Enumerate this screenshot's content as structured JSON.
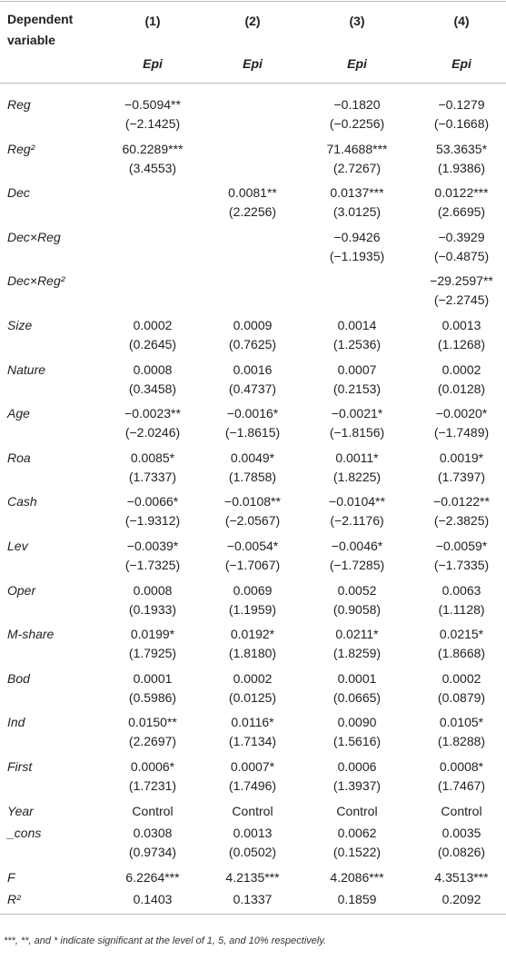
{
  "table": {
    "header": {
      "label": "Dependent variable",
      "columns": [
        "(1)",
        "(2)",
        "(3)",
        "(4)"
      ],
      "subheader": [
        "Epi",
        "Epi",
        "Epi",
        "Epi"
      ]
    },
    "rows": [
      {
        "label": "Reg",
        "coef": [
          "−0.5094**",
          null,
          "−0.1820",
          "−0.1279"
        ],
        "t": [
          "(−2.1425)",
          null,
          "(−0.2256)",
          "(−0.1668)"
        ]
      },
      {
        "label": "Reg²",
        "coef": [
          "60.2289***",
          null,
          "71.4688***",
          "53.3635*"
        ],
        "t": [
          "(3.4553)",
          null,
          "(2.7267)",
          "(1.9386)"
        ]
      },
      {
        "label": "Dec",
        "coef": [
          null,
          "0.0081**",
          "0.0137***",
          "0.0122***"
        ],
        "t": [
          null,
          "(2.2256)",
          "(3.0125)",
          "(2.6695)"
        ]
      },
      {
        "label": "Dec×Reg",
        "coef": [
          null,
          null,
          "−0.9426",
          "−0.3929"
        ],
        "t": [
          null,
          null,
          "(−1.1935)",
          "(−0.4875)"
        ]
      },
      {
        "label": "Dec×Reg²",
        "coef": [
          null,
          null,
          null,
          "−29.2597**"
        ],
        "t": [
          null,
          null,
          null,
          "(−2.2745)"
        ]
      },
      {
        "label": "Size",
        "coef": [
          "0.0002",
          "0.0009",
          "0.0014",
          "0.0013"
        ],
        "t": [
          "(0.2645)",
          "(0.7625)",
          "(1.2536)",
          "(1.1268)"
        ]
      },
      {
        "label": "Nature",
        "coef": [
          "0.0008",
          "0.0016",
          "0.0007",
          "0.0002"
        ],
        "t": [
          "(0.3458)",
          "(0.4737)",
          "(0.2153)",
          "(0.0128)"
        ]
      },
      {
        "label": "Age",
        "coef": [
          "−0.0023**",
          "−0.0016*",
          "−0.0021*",
          "−0.0020*"
        ],
        "t": [
          "(−2.0246)",
          "(−1.8615)",
          "(−1.8156)",
          "(−1.7489)"
        ]
      },
      {
        "label": "Roa",
        "coef": [
          "0.0085*",
          "0.0049*",
          "0.0011*",
          "0.0019*"
        ],
        "t": [
          "(1.7337)",
          "(1.7858)",
          "(1.8225)",
          "(1.7397)"
        ]
      },
      {
        "label": "Cash",
        "coef": [
          "−0.0066*",
          "−0.0108**",
          "−0.0104**",
          "−0.0122**"
        ],
        "t": [
          "(−1.9312)",
          "(−2.0567)",
          "(−2.1176)",
          "(−2.3825)"
        ]
      },
      {
        "label": "Lev",
        "coef": [
          "−0.0039*",
          "−0.0054*",
          "−0.0046*",
          "−0.0059*"
        ],
        "t": [
          "(−1.7325)",
          "(−1.7067)",
          "(−1.7285)",
          "(−1.7335)"
        ]
      },
      {
        "label": "Oper",
        "coef": [
          "0.0008",
          "0.0069",
          "0.0052",
          "0.0063"
        ],
        "t": [
          "(0.1933)",
          "(1.1959)",
          "(0.9058)",
          "(1.1128)"
        ]
      },
      {
        "label": "M-share",
        "coef": [
          "0.0199*",
          "0.0192*",
          "0.0211*",
          "0.0215*"
        ],
        "t": [
          "(1.7925)",
          "(1.8180)",
          "(1.8259)",
          "(1.8668)"
        ]
      },
      {
        "label": "Bod",
        "coef": [
          "0.0001",
          "0.0002",
          "0.0001",
          "0.0002"
        ],
        "t": [
          "(0.5986)",
          "(0.0125)",
          "(0.0665)",
          "(0.0879)"
        ]
      },
      {
        "label": "Ind",
        "coef": [
          "0.0150**",
          "0.0116*",
          "0.0090",
          "0.0105*"
        ],
        "t": [
          "(2.2697)",
          "(1.7134)",
          "(1.5616)",
          "(1.8288)"
        ]
      },
      {
        "label": "First",
        "coef": [
          "0.0006*",
          "0.0007*",
          "0.0006",
          "0.0008*"
        ],
        "t": [
          "(1.7231)",
          "(1.7496)",
          "(1.3937)",
          "(1.7467)"
        ]
      },
      {
        "label": "Year",
        "coef": [
          "Control",
          "Control",
          "Control",
          "Control"
        ]
      },
      {
        "label": "_cons",
        "coef": [
          "0.0308",
          "0.0013",
          "0.0062",
          "0.0035"
        ],
        "t": [
          "(0.9734)",
          "(0.0502)",
          "(0.1522)",
          "(0.0826)"
        ]
      },
      {
        "label": "F",
        "coef": [
          "6.2264***",
          "4.2135***",
          "4.2086***",
          "4.3513***"
        ]
      },
      {
        "label": "R²",
        "coef": [
          "0.1403",
          "0.1337",
          "0.1859",
          "0.2092"
        ]
      }
    ],
    "footnote": "***, **, and * indicate significant at the level of 1, 5, and 10% respectively."
  }
}
